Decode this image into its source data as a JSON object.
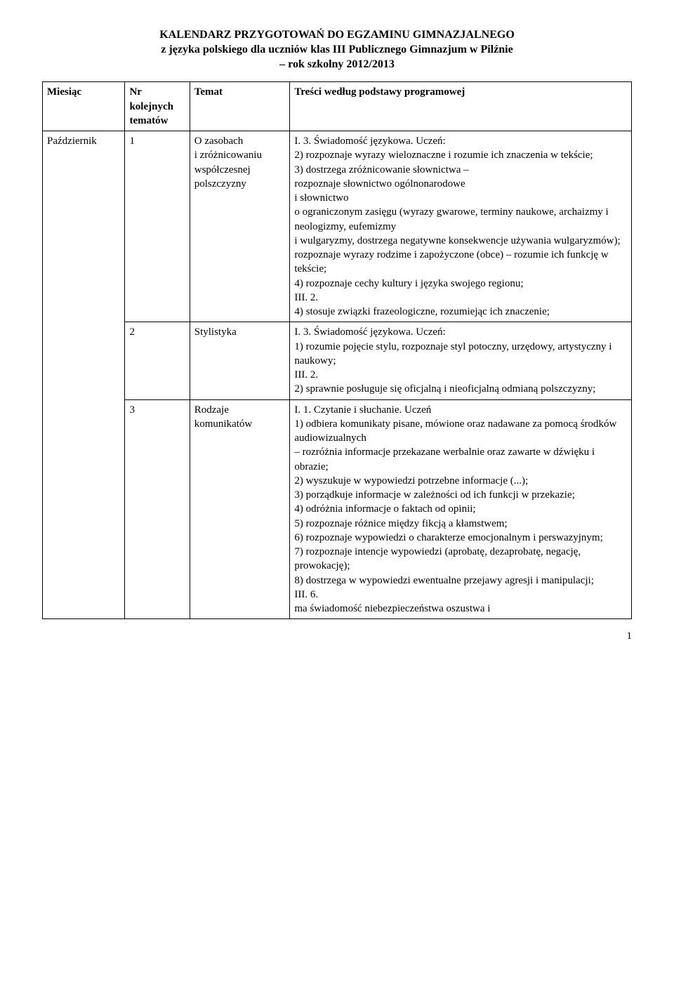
{
  "title": {
    "line1": "KALENDARZ PRZYGOTOWAŃ DO EGZAMINU GIMNAZJALNEGO",
    "line2": "z języka polskiego dla uczniów klas III Publicznego Gimnazjum w Pilźnie",
    "line3": "– rok szkolny 2012/2013"
  },
  "headers": {
    "col1": "Miesiąc",
    "col2": "Nr\nkolejnych\ntematów",
    "col3": "Temat",
    "col4": "Treści według podstawy programowej"
  },
  "month": "Październik",
  "rows": [
    {
      "nr": "1",
      "topic": "O zasobach\ni zróżnicowaniu\nwspółczesnej\npolszczyzny",
      "content": "I. 3. Świadomość językowa. Uczeń:\n2) rozpoznaje wyrazy wieloznaczne i rozumie ich znaczenia w tekście;\n3) dostrzega zróżnicowanie słownictwa –\n rozpoznaje słownictwo ogólnonarodowe\ni słownictwo\no ograniczonym zasięgu (wyrazy gwarowe, terminy naukowe, archaizmy i neologizmy, eufemizmy\ni wulgaryzmy, dostrzega negatywne konsekwencje używania wulgaryzmów); rozpoznaje wyrazy rodzime i zapożyczone (obce) – rozumie ich funkcję w tekście;\n4)  rozpoznaje cechy kultury i języka swojego regionu;\nIII. 2.\n4)  stosuje związki frazeologiczne, rozumiejąc ich znaczenie;"
    },
    {
      "nr": "2",
      "topic": "Stylistyka",
      "content": "I. 3. Świadomość językowa. Uczeń:\n1)  rozumie pojęcie stylu, rozpoznaje styl potoczny, urzędowy, artystyczny i naukowy;\nIII. 2.\n2)  sprawnie posługuje się oficjalną i nieoficjalną odmianą polszczyzny;"
    },
    {
      "nr": "3",
      "topic": "Rodzaje\nkomunikatów",
      "content": "I. 1. Czytanie i słuchanie. Uczeń\n1) odbiera komunikaty pisane, mówione oraz nadawane za pomocą środków audiowizualnych\n– rozróżnia informacje przekazane werbalnie oraz zawarte w dźwięku i obrazie;\n2) wyszukuje w wypowiedzi potrzebne informacje (...);\n3)  porządkuje informacje w zależności od ich funkcji w przekazie;\n4)  odróżnia informacje o faktach od opinii;\n5)  rozpoznaje różnice między fikcją a kłamstwem;\n6)  rozpoznaje wypowiedzi o charakterze emocjonalnym i perswazyjnym;\n7)  rozpoznaje intencje wypowiedzi (aprobatę, dezaprobatę, negację, prowokację);\n8)  dostrzega w wypowiedzi ewentualne przejawy agresji i manipulacji;\nIII. 6.\nma świadomość niebezpieczeństwa oszustwa i"
    }
  ],
  "page_number": "1"
}
